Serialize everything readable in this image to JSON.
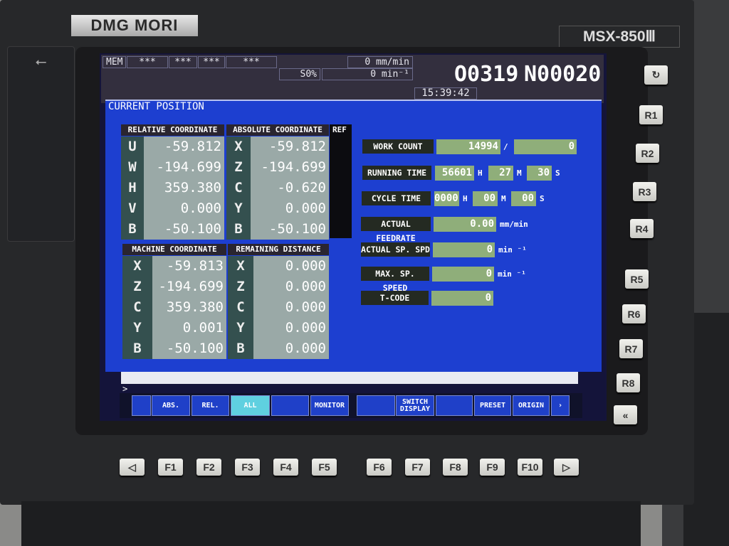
{
  "brand": "DMG MORI",
  "model": "MSX-850Ⅲ",
  "usb_icon": "usb-icon",
  "header": {
    "mode": "MEM",
    "status": [
      "***",
      "***",
      "***",
      "***"
    ],
    "feed": "0 mm/min",
    "override": "S0%",
    "spindle": "0 min⁻¹",
    "program": "O0319",
    "sequence": "N00020",
    "time": "15:39:42"
  },
  "screen_title": "CURRENT POSITION",
  "relative": {
    "title": "RELATIVE COORDINATE",
    "axes": [
      "U",
      "W",
      "H",
      "V",
      "B"
    ],
    "values": [
      "-59.812",
      "-194.699",
      "359.380",
      "0.000",
      "-50.100"
    ]
  },
  "absolute": {
    "title": "ABSOLUTE COORDINATE",
    "ref": "REF",
    "axes": [
      "X",
      "Z",
      "C",
      "Y",
      "B"
    ],
    "values": [
      "-59.812",
      "-194.699",
      "-0.620",
      "0.000",
      "-50.100"
    ]
  },
  "machine": {
    "title": "MACHINE COORDINATE",
    "axes": [
      "X",
      "Z",
      "C",
      "Y",
      "B"
    ],
    "values": [
      "-59.813",
      "-194.699",
      "359.380",
      "0.001",
      "-50.100"
    ]
  },
  "remaining": {
    "title": "REMAINING DISTANCE",
    "axes": [
      "X",
      "Z",
      "C",
      "Y",
      "B"
    ],
    "values": [
      "0.000",
      "0.000",
      "0.000",
      "0.000",
      "0.000"
    ]
  },
  "info": {
    "work_count": {
      "label": "WORK COUNT",
      "value": "14994",
      "sep": "/",
      "target": "0"
    },
    "running_time": {
      "label": "RUNNING TIME",
      "h": "56601",
      "m": "27",
      "s": "30"
    },
    "cycle_time": {
      "label": "CYCLE TIME",
      "h": "0000",
      "m": "00",
      "s": "00"
    },
    "units": {
      "h": "H",
      "m": "M",
      "s": "S"
    },
    "feedrate": {
      "label": "ACTUAL FEEDRATE",
      "value": "0.00",
      "unit": "mm/min"
    },
    "sp_spd": {
      "label": "ACTUAL SP. SPD",
      "value": "0",
      "unit": "min ⁻¹"
    },
    "max_sp": {
      "label": "MAX. SP. SPEED",
      "value": "0",
      "unit": "min ⁻¹"
    },
    "tcode": {
      "label": "T-CODE",
      "value": "0"
    }
  },
  "command_prompt": ">_",
  "softkeys": [
    "",
    "ABS.",
    "REL.",
    "ALL",
    "",
    "MONITOR",
    "",
    "SWITCH DISPLAY",
    "",
    "PRESET",
    "ORIGIN",
    "›"
  ],
  "active_softkey": "ALL",
  "fkeys": [
    "◁",
    "F1",
    "F2",
    "F3",
    "F4",
    "F5",
    "F6",
    "F7",
    "F8",
    "F9",
    "F10",
    "▷"
  ],
  "rkeys": [
    "↻",
    "R1",
    "R2",
    "R3",
    "R4",
    "R5",
    "R6",
    "R7",
    "R8",
    "«"
  ],
  "colors": {
    "screen_blue": "#1d3fd0",
    "value_green": "#8fae7a",
    "active_key": "#5fd0e0"
  }
}
